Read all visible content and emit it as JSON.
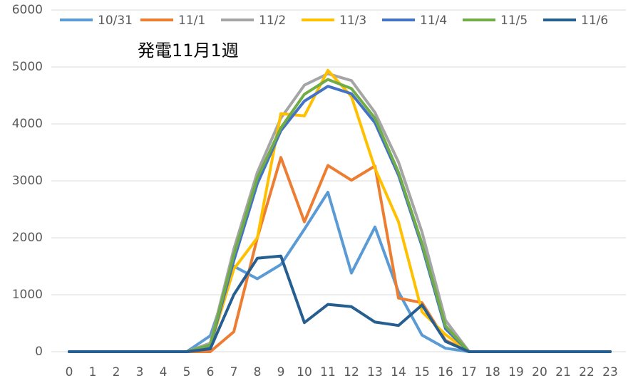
{
  "chart_data": {
    "type": "line",
    "annotation": "発電11月1週",
    "categories": [
      "0",
      "1",
      "2",
      "3",
      "4",
      "5",
      "6",
      "7",
      "8",
      "9",
      "10",
      "11",
      "12",
      "13",
      "14",
      "15",
      "16",
      "17",
      "18",
      "19",
      "20",
      "21",
      "22",
      "23"
    ],
    "series": [
      {
        "name": "10/31",
        "color": "#5b9bd5",
        "values": [
          0,
          0,
          0,
          0,
          0,
          0,
          280,
          1500,
          1280,
          1530,
          2150,
          2800,
          1380,
          2190,
          1050,
          290,
          60,
          0,
          0,
          0,
          0,
          0,
          0,
          0
        ]
      },
      {
        "name": "11/1",
        "color": "#ed7d31",
        "values": [
          0,
          0,
          0,
          0,
          0,
          0,
          0,
          350,
          2000,
          3410,
          2280,
          3270,
          3010,
          3260,
          940,
          860,
          200,
          0,
          0,
          0,
          0,
          0,
          0,
          0
        ]
      },
      {
        "name": "11/2",
        "color": "#a5a5a5",
        "values": [
          0,
          0,
          0,
          0,
          0,
          0,
          150,
          1800,
          3150,
          4100,
          4680,
          4880,
          4760,
          4200,
          3330,
          2100,
          550,
          0,
          0,
          0,
          0,
          0,
          0,
          0
        ]
      },
      {
        "name": "11/3",
        "color": "#ffc000",
        "values": [
          0,
          0,
          0,
          0,
          0,
          0,
          100,
          1450,
          2000,
          4180,
          4140,
          4940,
          4480,
          3220,
          2280,
          700,
          300,
          0,
          0,
          0,
          0,
          0,
          0,
          0
        ]
      },
      {
        "name": "11/4",
        "color": "#4472c4",
        "values": [
          0,
          0,
          0,
          0,
          0,
          0,
          100,
          1600,
          2950,
          3880,
          4400,
          4660,
          4530,
          4020,
          3100,
          1850,
          400,
          0,
          0,
          0,
          0,
          0,
          0,
          0
        ]
      },
      {
        "name": "11/5",
        "color": "#70ad47",
        "values": [
          0,
          0,
          0,
          0,
          0,
          0,
          120,
          1700,
          3050,
          3930,
          4520,
          4780,
          4620,
          4100,
          3150,
          1900,
          450,
          0,
          0,
          0,
          0,
          0,
          0,
          0
        ]
      },
      {
        "name": "11/6",
        "color": "#255e91",
        "values": [
          0,
          0,
          0,
          0,
          0,
          0,
          50,
          1000,
          1640,
          1680,
          510,
          830,
          790,
          520,
          460,
          820,
          180,
          0,
          0,
          0,
          0,
          0,
          0,
          0
        ]
      }
    ],
    "ylim": [
      0,
      6000
    ],
    "yticks": [
      0,
      1000,
      2000,
      3000,
      4000,
      5000,
      6000
    ],
    "grid": true,
    "legend": "top"
  }
}
